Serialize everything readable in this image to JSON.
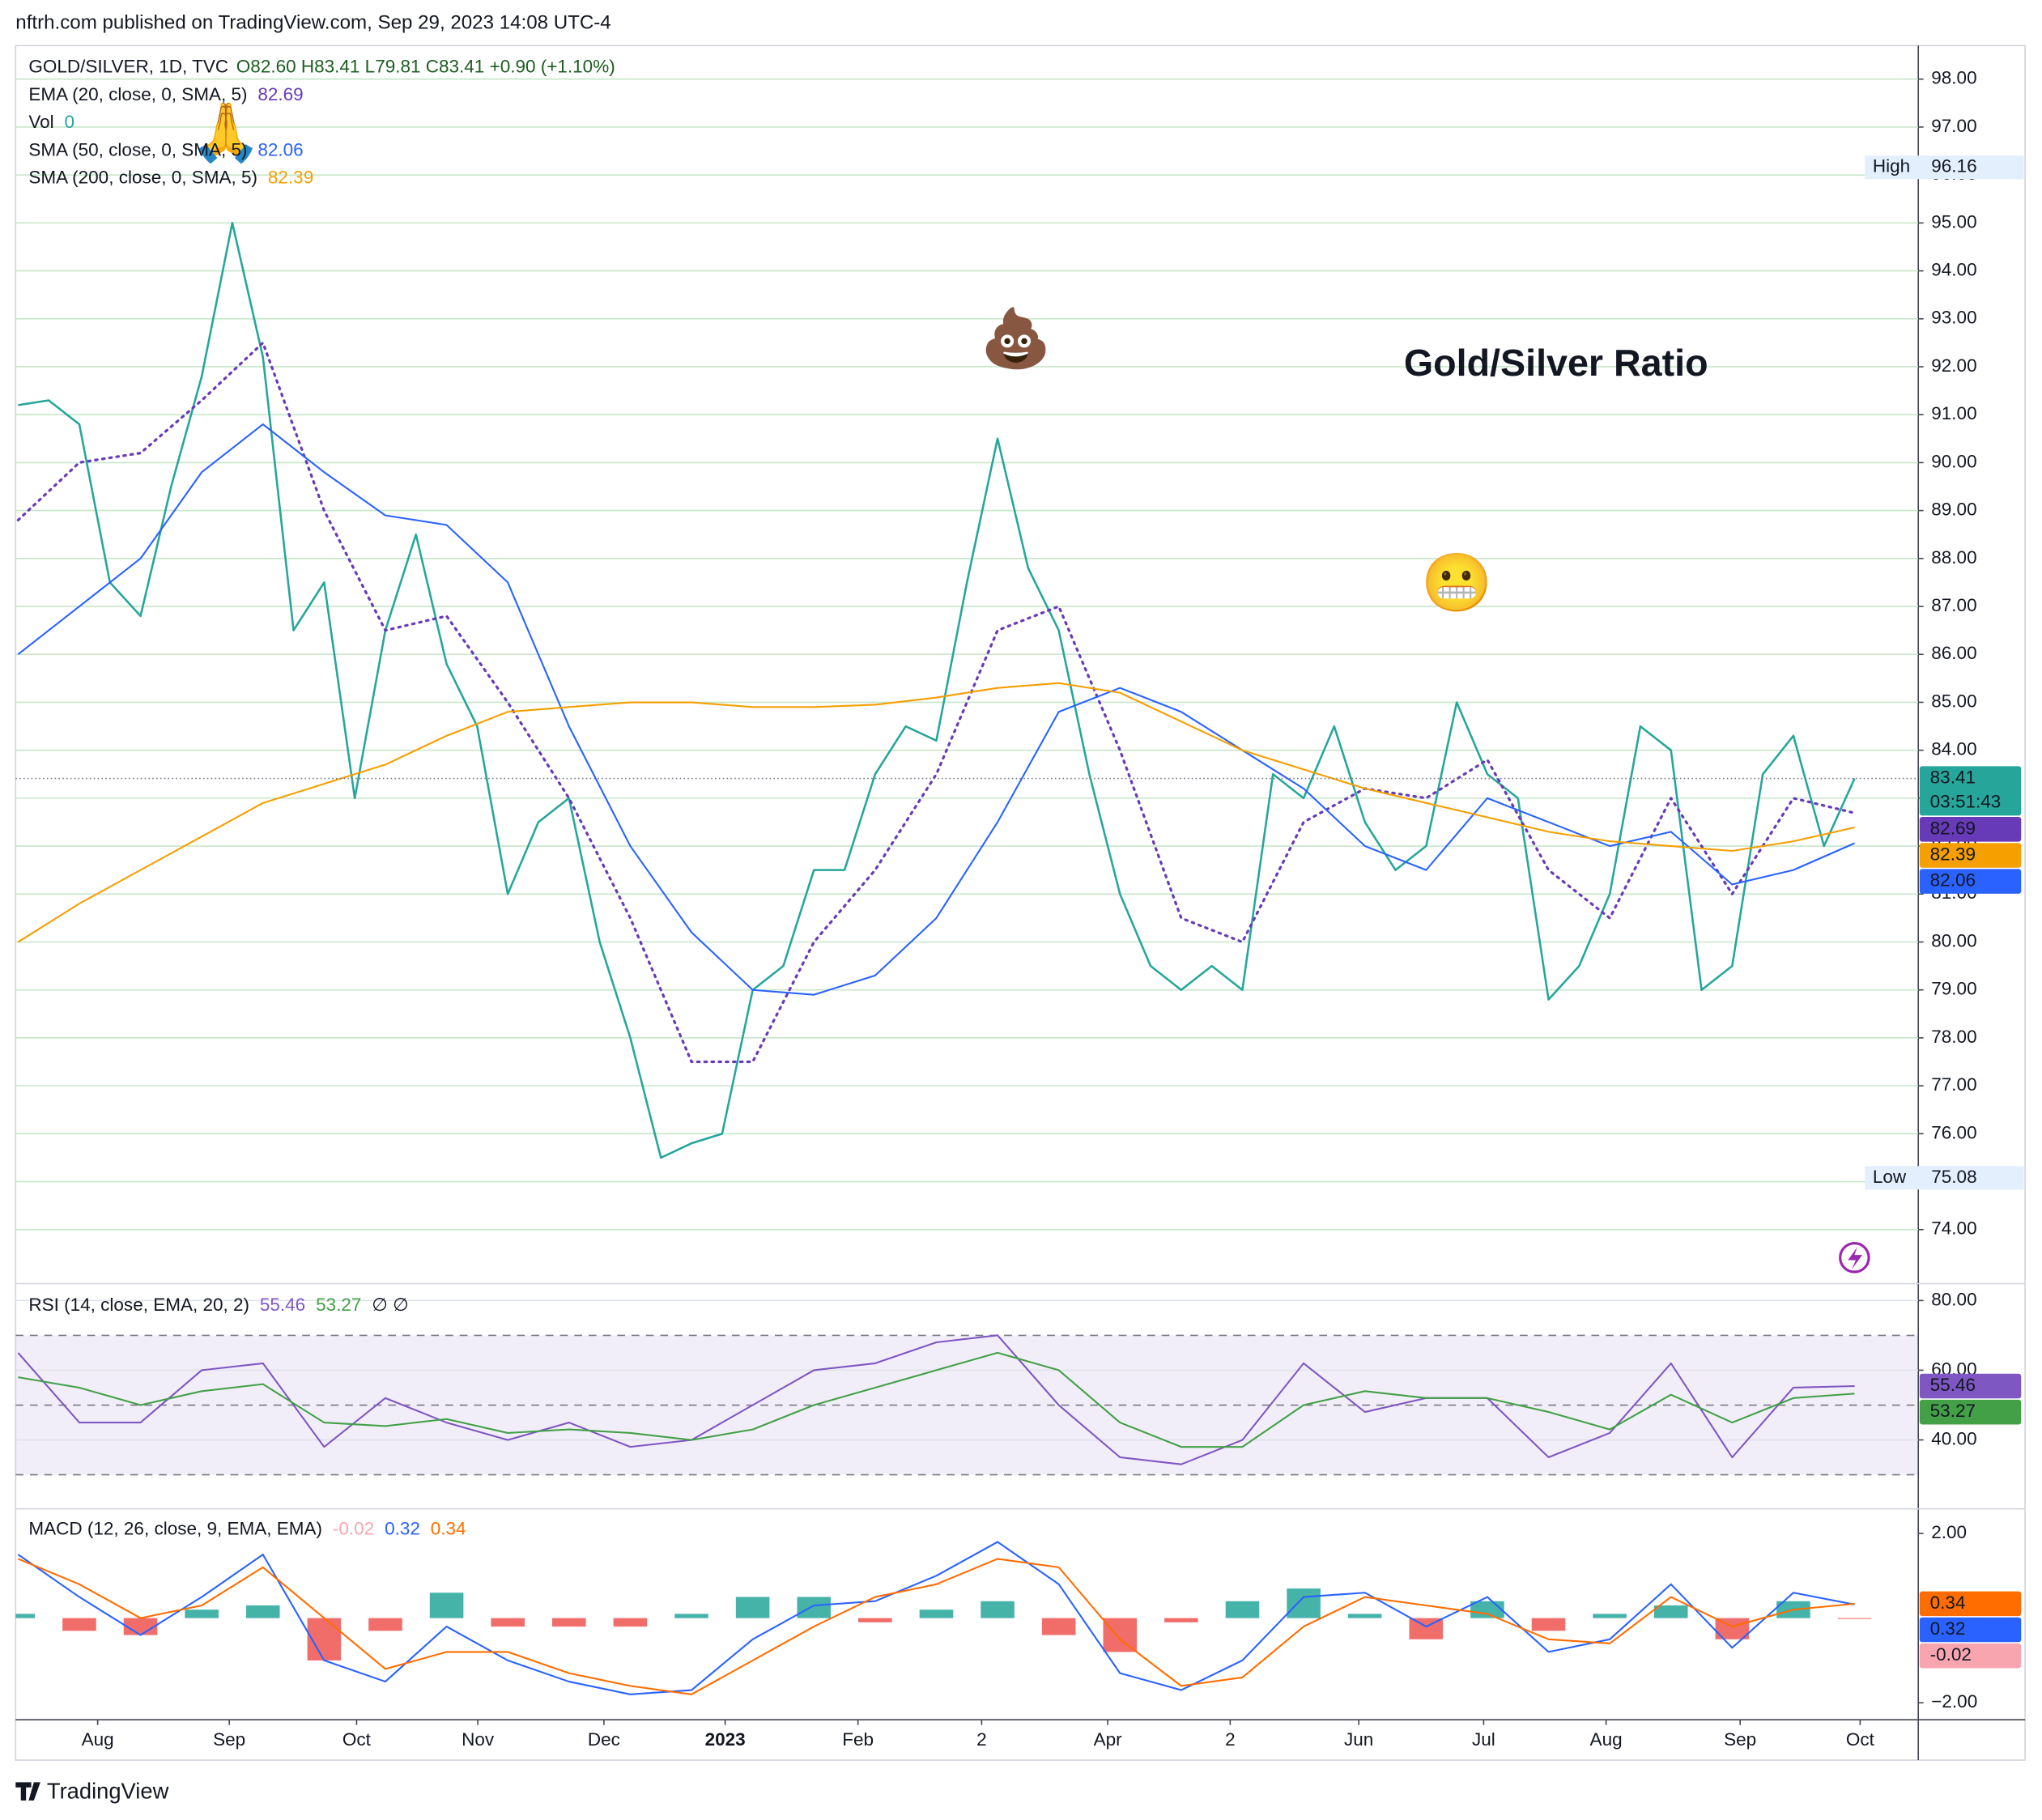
{
  "header": "nftrh.com published on TradingView.com, Sep 29, 2023 14:08 UTC-4",
  "footer": "TradingView",
  "chart_data": [
    {
      "type": "line",
      "title": "Gold/Silver Ratio",
      "symbol": "GOLD/SILVER, 1D, TVC",
      "ohlc": "O82.60 H83.41 L79.81 C83.41 +0.90 (+1.10%)",
      "volume": {
        "name": "Vol",
        "value": 0,
        "color": "#26a69a"
      },
      "countdown": "03:51:43",
      "high": {
        "label": "High",
        "value": 96.16
      },
      "low": {
        "label": "Low",
        "value": 75.08
      },
      "annotations": [
        {
          "text": "🙏",
          "x": 34,
          "y": 96.8
        },
        {
          "text": "💩",
          "x": 163,
          "y": 92.5
        },
        {
          "text": "😬",
          "x": 235,
          "y": 87.4
        }
      ],
      "xlim": [
        -0.4,
        310.4
      ],
      "ylim": [
        72.9,
        98.7
      ],
      "yticks": [
        {
          "value": 74,
          "label": "74.00"
        },
        {
          "value": 75,
          "label": "75.00"
        },
        {
          "value": 76,
          "label": "76.00"
        },
        {
          "value": 77,
          "label": "77.00"
        },
        {
          "value": 78,
          "label": "78.00"
        },
        {
          "value": 79,
          "label": "79.00"
        },
        {
          "value": 80,
          "label": "80.00"
        },
        {
          "value": 81,
          "label": "81.00"
        },
        {
          "value": 82,
          "label": "82.00"
        },
        {
          "value": 83,
          "label": "83.00"
        },
        {
          "value": 84,
          "label": "84.00"
        },
        {
          "value": 85,
          "label": "85.00"
        },
        {
          "value": 86,
          "label": "86.00"
        },
        {
          "value": 87,
          "label": "87.00"
        },
        {
          "value": 88,
          "label": "88.00"
        },
        {
          "value": 89,
          "label": "89.00"
        },
        {
          "value": 90,
          "label": "90.00"
        },
        {
          "value": 91,
          "label": "91.00"
        },
        {
          "value": 92,
          "label": "92.00"
        },
        {
          "value": 93,
          "label": "93.00"
        },
        {
          "value": 94,
          "label": "94.00"
        },
        {
          "value": 95,
          "label": "95.00"
        },
        {
          "value": 96,
          "label": "96.00"
        },
        {
          "value": 97,
          "label": "97.00"
        },
        {
          "value": 98,
          "label": "98.00"
        }
      ],
      "grid": true,
      "x": [
        0,
        5,
        10,
        15,
        20,
        25,
        30,
        35,
        40,
        45,
        50,
        55,
        60,
        65,
        70,
        75,
        80,
        85,
        90,
        95,
        100,
        105,
        110,
        115,
        120,
        125,
        130,
        135,
        140,
        145,
        150,
        155,
        160,
        165,
        170,
        175,
        180,
        185,
        190,
        195,
        200,
        205,
        210,
        215,
        220,
        225,
        230,
        235,
        240,
        245,
        250,
        255,
        260,
        265,
        270,
        275,
        280,
        285,
        290,
        295,
        300
      ],
      "series": [
        {
          "name": "GOLD/SILVER, 1D, TVC",
          "color": "#26a69a",
          "badge": true,
          "values": [
            91.2,
            91.3,
            90.8,
            87.5,
            86.8,
            89.5,
            91.8,
            95.0,
            92.2,
            86.5,
            87.5,
            83.0,
            86.5,
            88.5,
            85.8,
            84.5,
            81.0,
            82.5,
            83.0,
            80.0,
            78.0,
            75.5,
            75.8,
            76.0,
            79.0,
            79.5,
            81.5,
            81.5,
            83.5,
            84.5,
            84.2,
            87.5,
            90.5,
            87.8,
            86.5,
            83.5,
            81.0,
            79.5,
            79.0,
            79.5,
            79.0,
            83.5,
            83.0,
            84.5,
            82.5,
            81.5,
            82.0,
            85.0,
            83.5,
            83.0,
            78.8,
            79.5,
            81.0,
            84.5,
            84.0,
            79.0,
            79.5,
            83.5,
            84.3,
            82.0,
            83.41
          ]
        },
        {
          "name": "EMA (20, close, 0, SMA, 5)",
          "color": "#673ab7",
          "style": "dotted",
          "badge": true,
          "x": [
            0,
            10,
            20,
            30,
            40,
            50,
            60,
            70,
            80,
            90,
            100,
            110,
            120,
            130,
            140,
            150,
            160,
            170,
            180,
            190,
            200,
            210,
            220,
            230,
            240,
            250,
            260,
            270,
            280,
            290,
            300
          ],
          "values": [
            88.8,
            90.0,
            90.2,
            91.3,
            92.5,
            89.0,
            86.5,
            86.8,
            85.0,
            83.0,
            80.5,
            77.5,
            77.5,
            80.0,
            81.5,
            83.5,
            86.5,
            87.0,
            84.0,
            80.5,
            80.0,
            82.5,
            83.2,
            83.0,
            83.8,
            81.5,
            80.5,
            83.0,
            81.0,
            83.0,
            82.69
          ]
        },
        {
          "name": "SMA (50, close, 0, SMA, 5)",
          "color": "#2962ff",
          "badge": true,
          "x": [
            0,
            10,
            20,
            30,
            40,
            50,
            60,
            70,
            80,
            90,
            100,
            110,
            120,
            130,
            140,
            150,
            160,
            170,
            180,
            190,
            200,
            210,
            220,
            230,
            240,
            250,
            260,
            270,
            280,
            290,
            300
          ],
          "values": [
            86.0,
            87.0,
            88.0,
            89.8,
            90.8,
            89.8,
            88.9,
            88.7,
            87.5,
            84.5,
            82.0,
            80.2,
            79.0,
            78.9,
            79.3,
            80.5,
            82.5,
            84.8,
            85.3,
            84.8,
            84.0,
            83.2,
            82.0,
            81.5,
            83.0,
            82.5,
            82.0,
            82.3,
            81.2,
            81.5,
            82.06
          ]
        },
        {
          "name": "SMA (200, close, 0, SMA, 5)",
          "color": "#f59f00",
          "badge": true,
          "x": [
            0,
            10,
            20,
            30,
            40,
            50,
            60,
            70,
            80,
            90,
            100,
            110,
            120,
            130,
            140,
            150,
            160,
            170,
            180,
            190,
            200,
            210,
            220,
            230,
            240,
            250,
            260,
            270,
            280,
            290,
            300
          ],
          "values": [
            80.0,
            80.8,
            81.5,
            82.2,
            82.9,
            83.3,
            83.7,
            84.3,
            84.8,
            84.9,
            85.0,
            85.0,
            84.9,
            84.9,
            84.95,
            85.1,
            85.3,
            85.4,
            85.2,
            84.6,
            84.0,
            83.6,
            83.2,
            82.9,
            82.6,
            82.3,
            82.1,
            82.0,
            81.9,
            82.1,
            82.39
          ]
        }
      ]
    },
    {
      "type": "line",
      "indicator": "RSI (14, close, EMA, 20, 2)",
      "flags": "∅ ∅",
      "xlim": [
        -0.4,
        310.4
      ],
      "ylim": [
        20.6,
        84.1
      ],
      "yticks": [
        {
          "value": 40,
          "label": "40.00"
        },
        {
          "value": 60,
          "label": "60.00"
        },
        {
          "value": 80,
          "label": "80.00"
        }
      ],
      "bands": [
        70,
        50,
        30
      ],
      "band_color": "#7e57c2",
      "x": [
        0,
        10,
        20,
        30,
        40,
        50,
        60,
        70,
        80,
        90,
        100,
        110,
        120,
        130,
        140,
        150,
        160,
        170,
        180,
        190,
        200,
        210,
        220,
        230,
        240,
        250,
        260,
        270,
        280,
        290,
        300
      ],
      "series": [
        {
          "color": "#7e57c2",
          "badge": true,
          "values": [
            65,
            45,
            45,
            60,
            62,
            38,
            52,
            45,
            40,
            45,
            38,
            40,
            50,
            60,
            62,
            68,
            70,
            50,
            35,
            33,
            40,
            62,
            48,
            52,
            52,
            35,
            42,
            62,
            35,
            55,
            55.46
          ]
        },
        {
          "color": "#43a047",
          "badge": true,
          "values": [
            58,
            55,
            50,
            54,
            56,
            45,
            44,
            46,
            42,
            43,
            42,
            40,
            43,
            50,
            55,
            60,
            65,
            60,
            45,
            38,
            38,
            50,
            54,
            52,
            52,
            48,
            43,
            53,
            45,
            52,
            53.27
          ]
        }
      ]
    },
    {
      "type": "combo",
      "indicator": "MACD (12, 26, close, 9, EMA, EMA)",
      "xlim": [
        -0.4,
        310.4
      ],
      "ylim": [
        -2.37,
        2.55
      ],
      "yticks": [
        {
          "value": -2,
          "label": "−2.00"
        },
        {
          "value": 2,
          "label": "2.00"
        }
      ],
      "xticks": [
        {
          "value": 13,
          "label": "Aug"
        },
        {
          "value": 34.5,
          "label": "Sep"
        },
        {
          "value": 55.3,
          "label": "Oct"
        },
        {
          "value": 75.1,
          "label": "Nov"
        },
        {
          "value": 95.7,
          "label": "Dec"
        },
        {
          "value": 115.5,
          "label": "2023"
        },
        {
          "value": 137.2,
          "label": "Feb"
        },
        {
          "value": 157.4,
          "label": "2"
        },
        {
          "value": 178,
          "label": "Apr"
        },
        {
          "value": 198,
          "label": "2"
        },
        {
          "value": 219,
          "label": "Jun"
        },
        {
          "value": 239.4,
          "label": "Jul"
        },
        {
          "value": 259.4,
          "label": "Aug"
        },
        {
          "value": 281.3,
          "label": "Sep"
        },
        {
          "value": 300.9,
          "label": "Oct"
        }
      ],
      "x": [
        0,
        10,
        20,
        30,
        40,
        50,
        60,
        70,
        80,
        90,
        100,
        110,
        120,
        130,
        140,
        150,
        160,
        170,
        180,
        190,
        200,
        210,
        220,
        230,
        240,
        250,
        260,
        270,
        280,
        290,
        300
      ],
      "series": [
        {
          "type": "bar",
          "color": "#f8a5b0",
          "up_color": "#26a69a",
          "down_color": "#ef5350",
          "badge": true,
          "values": [
            0.1,
            -0.3,
            -0.4,
            0.2,
            0.3,
            -1.0,
            -0.3,
            0.6,
            -0.2,
            -0.2,
            -0.2,
            0.1,
            0.5,
            0.5,
            -0.1,
            0.2,
            0.4,
            -0.4,
            -0.8,
            -0.1,
            0.4,
            0.7,
            0.1,
            -0.5,
            0.4,
            -0.3,
            0.1,
            0.3,
            -0.5,
            0.4,
            -0.02
          ]
        },
        {
          "type": "line",
          "color": "#2962ff",
          "badge": true,
          "values": [
            1.5,
            0.5,
            -0.4,
            0.5,
            1.5,
            -1.0,
            -1.5,
            -0.2,
            -1.0,
            -1.5,
            -1.8,
            -1.7,
            -0.5,
            0.3,
            0.4,
            1.0,
            1.8,
            0.8,
            -1.3,
            -1.7,
            -1.0,
            0.5,
            0.6,
            -0.2,
            0.5,
            -0.8,
            -0.5,
            0.8,
            -0.7,
            0.6,
            0.32
          ]
        },
        {
          "type": "line",
          "color": "#ff6d00",
          "badge": true,
          "values": [
            1.4,
            0.8,
            0.0,
            0.3,
            1.2,
            0.0,
            -1.2,
            -0.8,
            -0.8,
            -1.3,
            -1.6,
            -1.8,
            -1.0,
            -0.2,
            0.5,
            0.8,
            1.4,
            1.2,
            -0.5,
            -1.6,
            -1.4,
            -0.2,
            0.5,
            0.3,
            0.1,
            -0.5,
            -0.6,
            0.5,
            -0.2,
            0.2,
            0.34
          ]
        }
      ]
    }
  ]
}
